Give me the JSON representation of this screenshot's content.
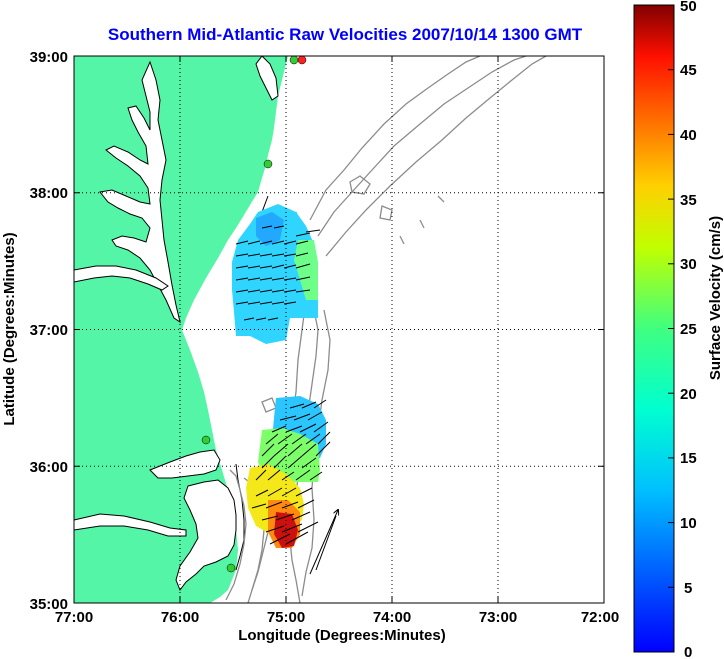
{
  "title": "Southern Mid-Atlantic Raw Velocities 2007/10/14 1300 GMT",
  "axes": {
    "xlabel": "Longitude (Degrees:Minutes)",
    "ylabel": "Latitude (Degrees:Minutes)",
    "xticks": [
      "77:00",
      "76:00",
      "75:00",
      "74:00",
      "73:00",
      "72:00"
    ],
    "yticks": [
      "39:00",
      "38:00",
      "37:00",
      "36:00",
      "35:00"
    ],
    "xlim_deg_west": [
      77,
      72
    ],
    "ylim_deg_north": [
      35,
      39
    ],
    "grid": "dotted"
  },
  "colorbar": {
    "label": "Surface Velocity (cm/s)",
    "ticks": [
      "50",
      "45",
      "40",
      "35",
      "30",
      "25",
      "20",
      "15",
      "10",
      "5",
      "0"
    ],
    "range": [
      0,
      50
    ],
    "colormap": "jet"
  },
  "colors": {
    "land": "#55f5a8",
    "coast": "#000000",
    "bathymetry": "#8c8c8c",
    "title": "#0000ff",
    "site_marker": "#33cc33",
    "site_marker_alt": "#ff2020"
  },
  "chart_data": {
    "type": "map",
    "title": "Southern Mid-Atlantic Raw Velocities 2007/10/14 1300 GMT",
    "xlabel": "Longitude (Degrees:Minutes)",
    "ylabel": "Latitude (Degrees:Minutes)",
    "colorbar_label": "Surface Velocity (cm/s)",
    "colorbar_range": [
      0,
      50
    ],
    "velocity_patches": [
      {
        "lon": -75.2,
        "lat": 37.4,
        "speed_cm_s": 12
      },
      {
        "lon": -74.8,
        "lat": 37.3,
        "speed_cm_s": 22
      },
      {
        "lon": -74.9,
        "lat": 36.3,
        "speed_cm_s": 12
      },
      {
        "lon": -75.1,
        "lat": 36.0,
        "speed_cm_s": 26
      },
      {
        "lon": -75.0,
        "lat": 35.6,
        "speed_cm_s": 32
      },
      {
        "lon": -74.98,
        "lat": 35.52,
        "speed_cm_s": 47
      }
    ],
    "sites": [
      {
        "lon": -75.12,
        "lat": 38.97,
        "type": "green"
      },
      {
        "lon": -75.07,
        "lat": 38.97,
        "type": "red"
      },
      {
        "lon": -75.18,
        "lat": 38.21,
        "type": "green"
      },
      {
        "lon": -75.64,
        "lat": 36.18,
        "type": "green"
      },
      {
        "lon": -75.52,
        "lat": 35.25,
        "type": "green"
      }
    ]
  }
}
